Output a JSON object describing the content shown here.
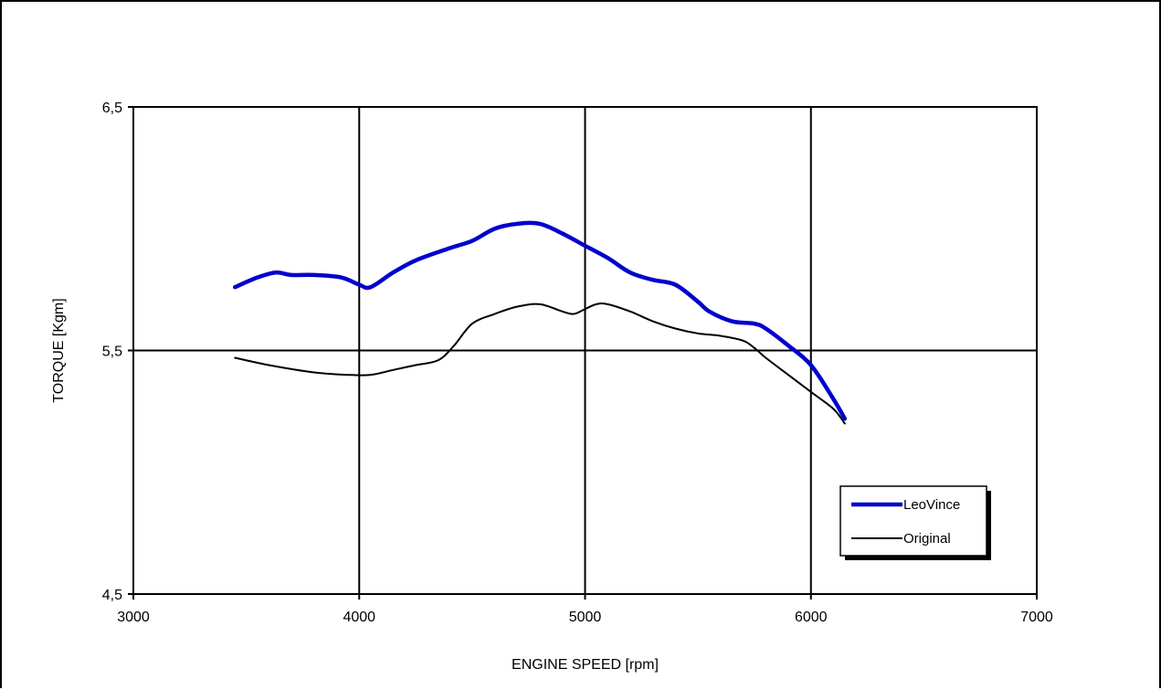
{
  "chart_data": {
    "type": "line",
    "title": "",
    "xlabel": "ENGINE SPEED [rpm]",
    "ylabel": "TORQUE [Kgm]",
    "xlim": [
      3000,
      7000
    ],
    "ylim": [
      4.5,
      6.5
    ],
    "x_ticks": [
      3000,
      4000,
      5000,
      6000,
      7000
    ],
    "x_tick_labels": [
      "3000",
      "4000",
      "5000",
      "6000",
      "7000"
    ],
    "y_ticks": [
      4.5,
      5.5,
      6.5
    ],
    "y_tick_labels": [
      "4,5",
      "5,5",
      "6,5"
    ],
    "grid": true,
    "legend_position": "bottom-right",
    "series": [
      {
        "name": "LeoVince",
        "color": "#0000cc",
        "line_width": "thick",
        "x": [
          3450,
          3550,
          3630,
          3700,
          3800,
          3920,
          4000,
          4050,
          4150,
          4250,
          4400,
          4500,
          4600,
          4700,
          4800,
          4900,
          5000,
          5100,
          5200,
          5300,
          5400,
          5500,
          5550,
          5650,
          5750,
          5800,
          5900,
          6000,
          6100,
          6150
        ],
        "values": [
          5.76,
          5.8,
          5.82,
          5.81,
          5.81,
          5.8,
          5.77,
          5.76,
          5.82,
          5.87,
          5.92,
          5.95,
          6.0,
          6.02,
          6.02,
          5.98,
          5.93,
          5.88,
          5.82,
          5.79,
          5.77,
          5.7,
          5.66,
          5.62,
          5.61,
          5.59,
          5.52,
          5.44,
          5.3,
          5.22
        ]
      },
      {
        "name": "Original",
        "color": "#000000",
        "line_width": "thin",
        "x": [
          3450,
          3600,
          3800,
          3950,
          4050,
          4150,
          4250,
          4350,
          4420,
          4500,
          4600,
          4700,
          4800,
          4900,
          4950,
          5000,
          5050,
          5100,
          5200,
          5300,
          5400,
          5500,
          5600,
          5700,
          5750,
          5800,
          5900,
          6000,
          6100,
          6150
        ],
        "values": [
          5.47,
          5.44,
          5.41,
          5.4,
          5.4,
          5.42,
          5.44,
          5.46,
          5.52,
          5.61,
          5.65,
          5.68,
          5.69,
          5.66,
          5.65,
          5.67,
          5.69,
          5.69,
          5.66,
          5.62,
          5.59,
          5.57,
          5.56,
          5.54,
          5.51,
          5.47,
          5.4,
          5.33,
          5.26,
          5.2
        ]
      }
    ]
  }
}
